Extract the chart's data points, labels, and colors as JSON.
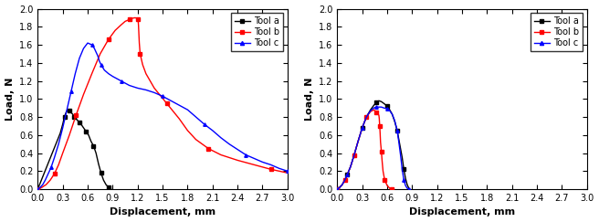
{
  "chart1": {
    "xlabel": "Displacement, mm",
    "ylabel": "Load, N",
    "xlim": [
      0.0,
      3.0
    ],
    "ylim": [
      0.0,
      2.0
    ],
    "xticks": [
      0.0,
      0.3,
      0.6,
      0.9,
      1.2,
      1.5,
      1.8,
      2.1,
      2.4,
      2.7,
      3.0
    ],
    "yticks": [
      0.0,
      0.2,
      0.4,
      0.6,
      0.8,
      1.0,
      1.2,
      1.4,
      1.6,
      1.8,
      2.0
    ],
    "tool_a": {
      "color": "#000000",
      "marker": "s",
      "label": "Tool a",
      "x": [
        0.0,
        0.27,
        0.3,
        0.32,
        0.34,
        0.36,
        0.38,
        0.4,
        0.42,
        0.44,
        0.46,
        0.48,
        0.5,
        0.52,
        0.55,
        0.58,
        0.61,
        0.64,
        0.67,
        0.7,
        0.73,
        0.76,
        0.79,
        0.82,
        0.85,
        0.88
      ],
      "y": [
        0.0,
        0.62,
        0.72,
        0.8,
        0.85,
        0.88,
        0.87,
        0.85,
        0.83,
        0.8,
        0.78,
        0.76,
        0.74,
        0.72,
        0.68,
        0.64,
        0.6,
        0.53,
        0.48,
        0.4,
        0.28,
        0.18,
        0.1,
        0.05,
        0.02,
        0.0
      ],
      "markevery": 3
    },
    "tool_b": {
      "color": "#ff0000",
      "marker": "s",
      "label": "Tool b",
      "x": [
        0.0,
        0.05,
        0.1,
        0.15,
        0.2,
        0.25,
        0.3,
        0.38,
        0.46,
        0.55,
        0.65,
        0.75,
        0.85,
        0.93,
        1.0,
        1.05,
        1.1,
        1.14,
        1.17,
        1.19,
        1.205,
        1.21,
        1.215,
        1.22,
        1.23,
        1.26,
        1.3,
        1.4,
        1.55,
        1.7,
        1.8,
        1.9,
        2.05,
        2.2,
        2.4,
        2.6,
        2.8,
        3.0
      ],
      "y": [
        0.0,
        0.02,
        0.05,
        0.1,
        0.17,
        0.27,
        0.4,
        0.6,
        0.82,
        1.05,
        1.28,
        1.5,
        1.66,
        1.76,
        1.82,
        1.86,
        1.88,
        1.895,
        1.9,
        1.895,
        1.88,
        1.82,
        1.72,
        1.62,
        1.5,
        1.38,
        1.28,
        1.12,
        0.95,
        0.78,
        0.65,
        0.55,
        0.45,
        0.38,
        0.32,
        0.27,
        0.22,
        0.18
      ],
      "markevery": 4
    },
    "tool_c": {
      "color": "#0000ff",
      "marker": "^",
      "label": "Tool c",
      "x": [
        0.0,
        0.03,
        0.06,
        0.09,
        0.12,
        0.16,
        0.2,
        0.25,
        0.3,
        0.35,
        0.4,
        0.45,
        0.5,
        0.55,
        0.6,
        0.65,
        0.68,
        0.7,
        0.72,
        0.74,
        0.76,
        0.78,
        0.8,
        0.85,
        0.9,
        1.0,
        1.1,
        1.2,
        1.3,
        1.4,
        1.5,
        1.6,
        1.7,
        1.8,
        1.9,
        2.0,
        2.1,
        2.2,
        2.3,
        2.4,
        2.5,
        2.6,
        2.7,
        2.8,
        2.9,
        3.0
      ],
      "y": [
        0.0,
        0.02,
        0.05,
        0.1,
        0.16,
        0.24,
        0.35,
        0.5,
        0.68,
        0.88,
        1.08,
        1.28,
        1.45,
        1.56,
        1.62,
        1.6,
        1.56,
        1.52,
        1.48,
        1.42,
        1.38,
        1.35,
        1.32,
        1.28,
        1.25,
        1.2,
        1.15,
        1.12,
        1.1,
        1.07,
        1.03,
        0.98,
        0.93,
        0.88,
        0.8,
        0.72,
        0.65,
        0.57,
        0.5,
        0.44,
        0.38,
        0.34,
        0.3,
        0.27,
        0.23,
        0.2
      ],
      "markevery": 5
    }
  },
  "chart2": {
    "xlabel": "Displacement, mm",
    "ylabel": "Load, N",
    "xlim": [
      0.0,
      3.0
    ],
    "ylim": [
      0.0,
      2.0
    ],
    "xticks": [
      0.0,
      0.3,
      0.6,
      0.9,
      1.2,
      1.5,
      1.8,
      2.1,
      2.4,
      2.7,
      3.0
    ],
    "yticks": [
      0.0,
      0.2,
      0.4,
      0.6,
      0.8,
      1.0,
      1.2,
      1.4,
      1.6,
      1.8,
      2.0
    ],
    "tool_a": {
      "color": "#000000",
      "marker": "s",
      "label": "Tool a",
      "x": [
        0.0,
        0.03,
        0.06,
        0.09,
        0.12,
        0.16,
        0.2,
        0.25,
        0.3,
        0.35,
        0.4,
        0.44,
        0.47,
        0.5,
        0.53,
        0.56,
        0.6,
        0.63,
        0.66,
        0.69,
        0.72,
        0.74,
        0.76,
        0.78,
        0.8,
        0.82,
        0.84,
        0.86
      ],
      "y": [
        0.0,
        0.02,
        0.05,
        0.1,
        0.16,
        0.25,
        0.37,
        0.53,
        0.68,
        0.8,
        0.88,
        0.93,
        0.96,
        0.98,
        0.97,
        0.95,
        0.92,
        0.88,
        0.83,
        0.75,
        0.65,
        0.55,
        0.45,
        0.35,
        0.22,
        0.12,
        0.05,
        0.01
      ],
      "markevery": 4
    },
    "tool_b": {
      "color": "#ff0000",
      "marker": "s",
      "label": "Tool b",
      "x": [
        0.0,
        0.03,
        0.06,
        0.09,
        0.12,
        0.16,
        0.2,
        0.25,
        0.3,
        0.35,
        0.4,
        0.44,
        0.47,
        0.5,
        0.505,
        0.51,
        0.515,
        0.52,
        0.53,
        0.54,
        0.55,
        0.57,
        0.6,
        0.63,
        0.65
      ],
      "y": [
        0.0,
        0.02,
        0.05,
        0.1,
        0.16,
        0.25,
        0.37,
        0.53,
        0.68,
        0.8,
        0.86,
        0.88,
        0.85,
        0.82,
        0.78,
        0.7,
        0.62,
        0.52,
        0.42,
        0.3,
        0.2,
        0.1,
        0.04,
        0.01,
        0.0
      ],
      "markevery": 3
    },
    "tool_c": {
      "color": "#0000ff",
      "marker": "^",
      "label": "Tool c",
      "x": [
        0.0,
        0.03,
        0.06,
        0.09,
        0.12,
        0.16,
        0.2,
        0.25,
        0.3,
        0.35,
        0.4,
        0.44,
        0.47,
        0.5,
        0.53,
        0.56,
        0.6,
        0.63,
        0.66,
        0.69,
        0.72,
        0.74,
        0.76,
        0.78,
        0.8,
        0.82,
        0.84,
        0.855,
        0.86
      ],
      "y": [
        0.0,
        0.02,
        0.05,
        0.1,
        0.16,
        0.25,
        0.37,
        0.53,
        0.68,
        0.8,
        0.87,
        0.9,
        0.91,
        0.91,
        0.91,
        0.9,
        0.89,
        0.87,
        0.83,
        0.76,
        0.65,
        0.52,
        0.38,
        0.22,
        0.1,
        0.04,
        0.01,
        0.005,
        0.0
      ],
      "markevery": 4
    }
  },
  "bg_color": "#ffffff",
  "label_fontsize": 8,
  "tick_fontsize": 7,
  "legend_fontsize": 7,
  "linewidth": 1.0,
  "marker_size": 2.5
}
